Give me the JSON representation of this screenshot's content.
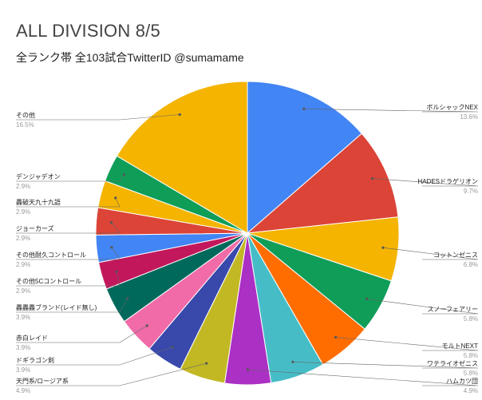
{
  "chart_data": {
    "type": "pie",
    "title": "ALL DIVISION 8/5",
    "subtitle": "全ランク帯 全103試合TwitterID @sumamame",
    "slices": [
      {
        "label": "ボルシャックNEX",
        "pct_label": "13.6%",
        "value": 13.6,
        "color": "#4285f4"
      },
      {
        "label": "HADESドラゲリオン",
        "pct_label": "9.7%",
        "value": 9.7,
        "color": "#db4437"
      },
      {
        "label": "コットンゼニス",
        "pct_label": "6.8%",
        "value": 6.8,
        "color": "#f4b400"
      },
      {
        "label": "スノーフェアリー",
        "pct_label": "5.8%",
        "value": 5.8,
        "color": "#0f9d58"
      },
      {
        "label": "モルトNEXT",
        "pct_label": "5.8%",
        "value": 5.8,
        "color": "#ff6d00"
      },
      {
        "label": "ワテライオゼニス",
        "pct_label": "5.8%",
        "value": 5.8,
        "color": "#46bdc6"
      },
      {
        "label": "ハムカツ団",
        "pct_label": "4.9%",
        "value": 4.9,
        "color": "#ab30c4"
      },
      {
        "label": "天門系/ロージア系",
        "pct_label": "4.9%",
        "value": 4.9,
        "color": "#c2b824"
      },
      {
        "label": "ドギラゴン剣",
        "pct_label": "3.9%",
        "value": 3.9,
        "color": "#3949ab"
      },
      {
        "label": "赤白レイド",
        "pct_label": "3.9%",
        "value": 3.9,
        "color": "#f06ba8"
      },
      {
        "label": "轟轟轟ブランド(レイド無し)",
        "pct_label": "3.9%",
        "value": 3.9,
        "color": "#00695c"
      },
      {
        "label": "その他5Cコントロール",
        "pct_label": "2.9%",
        "value": 2.9,
        "color": "#c2185b"
      },
      {
        "label": "その他耐久コントロール",
        "pct_label": "2.9%",
        "value": 2.9,
        "color": "#4285f4"
      },
      {
        "label": "ジョーカーズ",
        "pct_label": "2.9%",
        "value": 2.9,
        "color": "#db4437"
      },
      {
        "label": "轟破天九十九語",
        "pct_label": "2.9%",
        "value": 2.9,
        "color": "#f4b400"
      },
      {
        "label": "デンジャデオン",
        "pct_label": "2.9%",
        "value": 2.9,
        "color": "#0f9d58"
      },
      {
        "label": "その他",
        "pct_label": "16.5%",
        "value": 16.5,
        "color": "#f4b400"
      }
    ]
  }
}
